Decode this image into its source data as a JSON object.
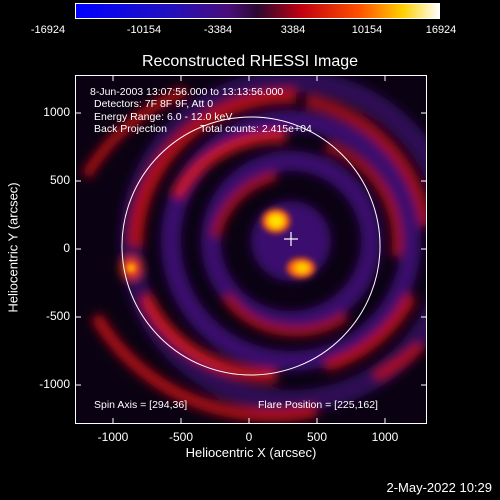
{
  "colorbar": {
    "ticks": [
      "-16924",
      "-10154",
      "-3384",
      "3384",
      "10154",
      "16924"
    ]
  },
  "title": "Reconstructed RHESSI Image",
  "annotations": {
    "time_range": "8-Jun-2003 13:07:56.000 to 13:13:56.000",
    "detectors": "Detectors: 7F 8F 9F, Att 0",
    "energy": "Energy Range: 6.0 - 12.0 keV",
    "method": "Back Projection",
    "counts": "Total counts: 2.415e+04",
    "spin_axis": "Spin Axis = [294,36]",
    "flare_position": "Flare Position = [225,162]"
  },
  "axes": {
    "xlabel": "Heliocentric X (arcsec)",
    "ylabel": "Heliocentric Y (arcsec)",
    "xticks": [
      "-1000",
      "-500",
      "0",
      "500",
      "1000"
    ],
    "yticks": [
      "1000",
      "500",
      "0",
      "-500",
      "-1000"
    ]
  },
  "colors": {
    "background": "#000000",
    "purple": "#3a0d6e",
    "red": "#c8141e",
    "yellow": "#ffe000"
  },
  "timestamp": "2-May-2022 10:29"
}
